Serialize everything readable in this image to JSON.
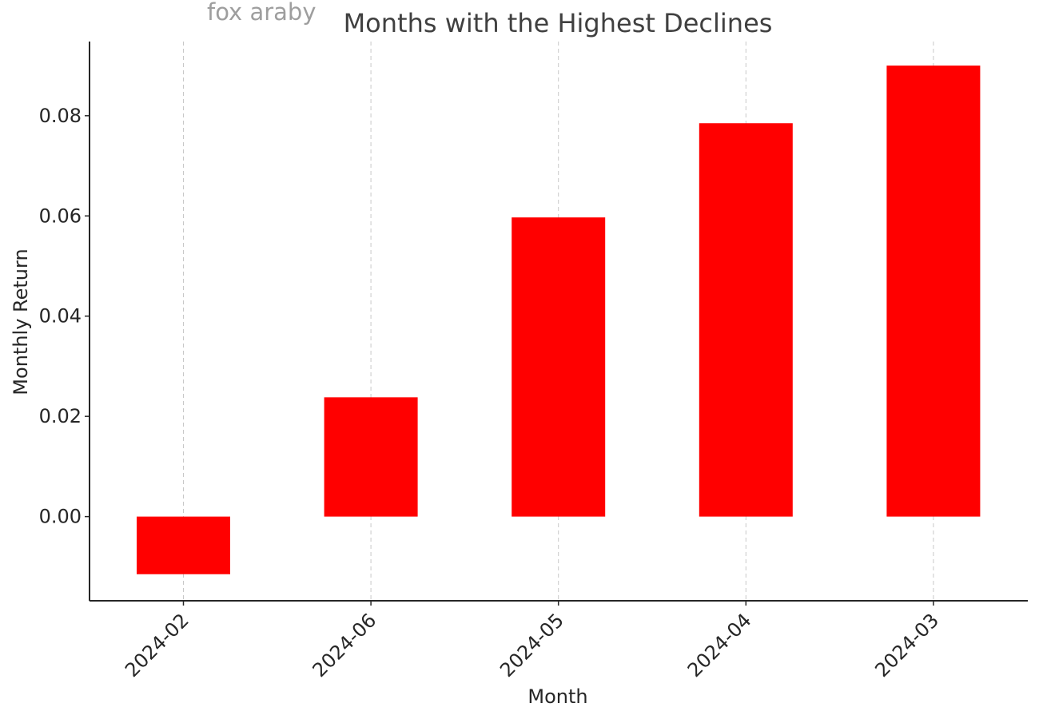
{
  "watermark": "fox araby",
  "chart_data": {
    "type": "bar",
    "title": "Months with the Highest Declines",
    "xlabel": "Month",
    "ylabel": "Monthly Return",
    "categories": [
      "2024-02",
      "2024-06",
      "2024-05",
      "2024-04",
      "2024-03"
    ],
    "values": [
      -0.0115,
      0.0238,
      0.0597,
      0.0785,
      0.09
    ],
    "ylim": [
      -0.0168,
      0.0948
    ],
    "yticks": [
      "0.00",
      "0.02",
      "0.04",
      "0.06",
      "0.08"
    ],
    "ytick_values": [
      0.0,
      0.02,
      0.04,
      0.06,
      0.08
    ],
    "grid": "vertical dashed",
    "legend": "none",
    "bar_color": "#ff0000",
    "grid_color": "#c8c8c8",
    "axis_color": "#262626",
    "text_color": "#262626",
    "title_color": "#404040"
  }
}
